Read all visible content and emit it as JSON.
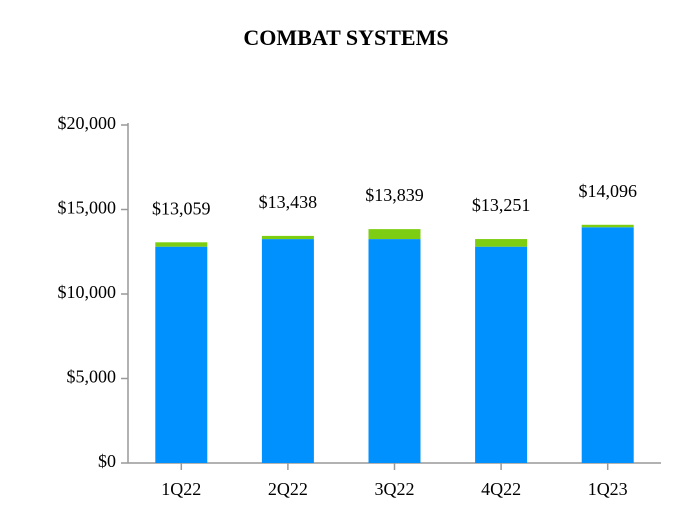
{
  "chart_data": {
    "type": "stacked_bar",
    "title": "COMBAT SYSTEMS",
    "categories": [
      "1Q22",
      "2Q22",
      "3Q22",
      "4Q22",
      "1Q23"
    ],
    "series": [
      {
        "color": "#0091ff",
        "values": [
          12800,
          13250,
          13250,
          12800,
          13950
        ]
      },
      {
        "color": "#7dce13",
        "values": [
          259,
          188,
          589,
          451,
          146
        ]
      }
    ],
    "totals": [
      13059,
      13438,
      13839,
      13251,
      14096
    ],
    "total_labels": [
      "$13,059",
      "$13,438",
      "$13,839",
      "$13,251",
      "$14,096"
    ],
    "ylim": [
      0,
      20000
    ],
    "yticks": [
      {
        "value": 0,
        "label": "$0"
      },
      {
        "value": 5000,
        "label": "$5,000"
      },
      {
        "value": 10000,
        "label": "$10,000"
      },
      {
        "value": 15000,
        "label": "$15,000"
      },
      {
        "value": 20000,
        "label": "$20,000"
      }
    ],
    "grid": false
  }
}
